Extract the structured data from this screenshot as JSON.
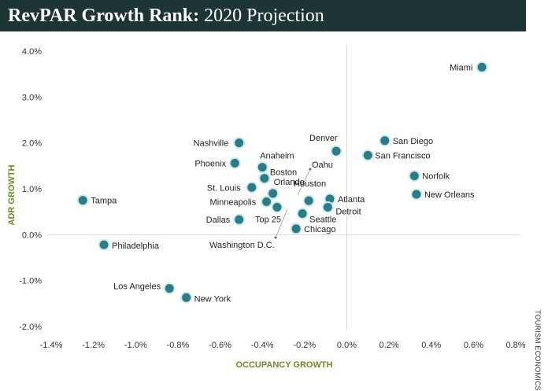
{
  "title": {
    "main": "RevPAR Growth Rank:",
    "sub": "2020 Projection"
  },
  "source": "TOURISM ECONOMICS",
  "chart_data": {
    "type": "scatter",
    "xlabel": "OCCUPANCY GROWTH",
    "ylabel": "ADR GROWTH",
    "xlim": [
      -1.4,
      0.8
    ],
    "ylim": [
      -2.0,
      4.0
    ],
    "x_ticks": [
      -1.4,
      -1.2,
      -1.0,
      -0.8,
      -0.6,
      -0.4,
      -0.2,
      0.0,
      0.2,
      0.4,
      0.6,
      0.8
    ],
    "x_tick_labels": [
      "-1.4%",
      "-1.2%",
      "-1.0%",
      "-0.8%",
      "-0.6%",
      "-0.4%",
      "-0.2%",
      "0.0%",
      "0.2%",
      "0.4%",
      "0.6%",
      "0.8%"
    ],
    "y_ticks": [
      4.0,
      3.0,
      2.0,
      1.0,
      0.0,
      -1.0,
      -2.0
    ],
    "y_tick_labels": [
      "4.0%",
      "3.0%",
      "2.0%",
      "1.0%",
      "0.0%",
      "-1.0%",
      "-2.0%"
    ],
    "axis_color": "#6b8e23",
    "marker_color": "#2a7d87",
    "points": [
      {
        "name": "Miami",
        "x": 0.64,
        "y": 3.65
      },
      {
        "name": "San Diego",
        "x": 0.18,
        "y": 2.05
      },
      {
        "name": "Denver",
        "x": -0.05,
        "y": 1.82
      },
      {
        "name": "San Francisco",
        "x": 0.1,
        "y": 1.73
      },
      {
        "name": "Nashville",
        "x": -0.51,
        "y": 2.0
      },
      {
        "name": "Phoenix",
        "x": -0.53,
        "y": 1.56
      },
      {
        "name": "Anaheim",
        "x": -0.4,
        "y": 1.47
      },
      {
        "name": "Boston",
        "x": -0.39,
        "y": 1.23
      },
      {
        "name": "Norfolk",
        "x": 0.32,
        "y": 1.28
      },
      {
        "name": "St. Louis",
        "x": -0.45,
        "y": 1.03
      },
      {
        "name": "Orlando",
        "x": -0.35,
        "y": 0.9
      },
      {
        "name": "New Orleans",
        "x": 0.33,
        "y": 0.88
      },
      {
        "name": "Houston",
        "x": -0.18,
        "y": 0.74
      },
      {
        "name": "Tampa",
        "x": -1.25,
        "y": 0.75
      },
      {
        "name": "Minneapolis",
        "x": -0.38,
        "y": 0.72
      },
      {
        "name": "Atlanta",
        "x": -0.08,
        "y": 0.78
      },
      {
        "name": "Top 25",
        "x": -0.33,
        "y": 0.6
      },
      {
        "name": "Detroit",
        "x": -0.09,
        "y": 0.6
      },
      {
        "name": "Seattle",
        "x": -0.21,
        "y": 0.46
      },
      {
        "name": "Dallas",
        "x": -0.51,
        "y": 0.33
      },
      {
        "name": "Chicago",
        "x": -0.24,
        "y": 0.13
      },
      {
        "name": "Philadelphia",
        "x": -1.15,
        "y": -0.22
      },
      {
        "name": "Los Angeles",
        "x": -0.84,
        "y": -1.17
      },
      {
        "name": "New York",
        "x": -0.76,
        "y": -1.37
      },
      {
        "name": "Oahu",
        "x": -0.27,
        "y": 0.84
      },
      {
        "name": "Washington D.C.",
        "x": -0.21,
        "y": 0.69
      }
    ]
  }
}
